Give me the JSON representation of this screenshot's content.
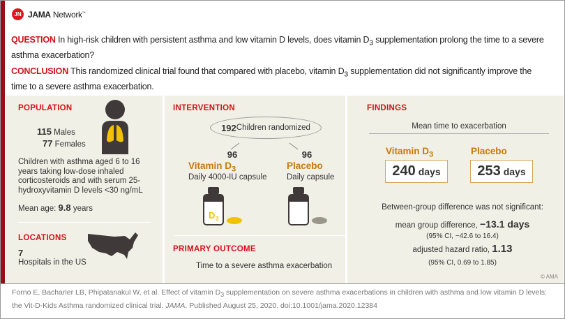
{
  "brand": {
    "logo_mark": "JN",
    "name_bold": "JAMA",
    "name_rest": " Network",
    "tm": "™"
  },
  "question": {
    "label": "QUESTION",
    "text_pre": " In high-risk children with persistent asthma and low vitamin D levels, does vitamin D",
    "sub": "3",
    "text_post": " supplementation prolong the time to a severe asthma exacerbation?"
  },
  "conclusion": {
    "label": "CONCLUSION",
    "text_pre": " This randomized clinical trial found that compared with placebo, vitamin D",
    "sub": "3",
    "text_post": " supplementation did not significantly improve the time to a severe asthma exacerbation."
  },
  "population": {
    "title": "POPULATION",
    "males_n": "115",
    "males_label": " Males",
    "females_n": "77",
    "females_label": " Females",
    "description": "Children with asthma aged 6 to 16 years taking low-dose inhaled corticosteroids and with serum 25-hydroxyvitamin D levels <30 ng/mL",
    "mean_age_label": "Mean age: ",
    "mean_age_value": "9.8",
    "mean_age_unit": " years",
    "icon": "child-lungs-icon"
  },
  "locations": {
    "title": "LOCATIONS",
    "count": "7",
    "label": "Hospitals in the US",
    "icon": "us-map-icon"
  },
  "intervention": {
    "title": "INTERVENTION",
    "randomized_n": "192",
    "randomized_label": " Children randomized",
    "arms": [
      {
        "n": "96",
        "name": "Vitamin D",
        "sub": "3",
        "dose": "Daily 4000-IU capsule",
        "bottle_label": "D",
        "bottle_sub": "3",
        "capsule_color": "#f2c200"
      },
      {
        "n": "96",
        "name": "Placebo",
        "sub": "",
        "dose": "Daily capsule",
        "capsule_color": "#9a968c"
      }
    ]
  },
  "primary_outcome": {
    "title": "PRIMARY OUTCOME",
    "text": "Time to a severe asthma exacerbation"
  },
  "findings": {
    "title": "FINDINGS",
    "subtitle": "Mean time to exacerbation",
    "groups": [
      {
        "name": "Vitamin D",
        "sub": "3",
        "value": "240",
        "unit": "days"
      },
      {
        "name": "Placebo",
        "sub": "",
        "value": "253",
        "unit": "days"
      }
    ],
    "significance": "Between-group difference was not significant:",
    "mean_diff_label": "mean group difference, ",
    "mean_diff_value": "−13.1 days",
    "mean_diff_ci": "(95% CI, −42.6 to 16.4)",
    "hr_label": "adjusted hazard ratio, ",
    "hr_value": "1.13",
    "hr_ci": "(95% CI, 0.69 to 1.85)",
    "copyright": "© AMA"
  },
  "citation": {
    "line1_pre": "Forno E, Bacharier LB, Phipatanakul W, et al. Effect of vitamin D",
    "sub": "3",
    "line1_post": " supplementation on severe asthma exacerbations in children with asthma and low vitamin D levels:",
    "line2_pre": "the Vit-D-Kids Asthma randomized clinical trial. ",
    "journal": "JAMA",
    "line2_post": ". Published August 25, 2020. doi:10.1001/jama.2020.12384"
  },
  "colors": {
    "red": "#d3111b",
    "dark_red": "#9b0d14",
    "gold": "#c8780a",
    "panel": "#f1f0e6"
  }
}
